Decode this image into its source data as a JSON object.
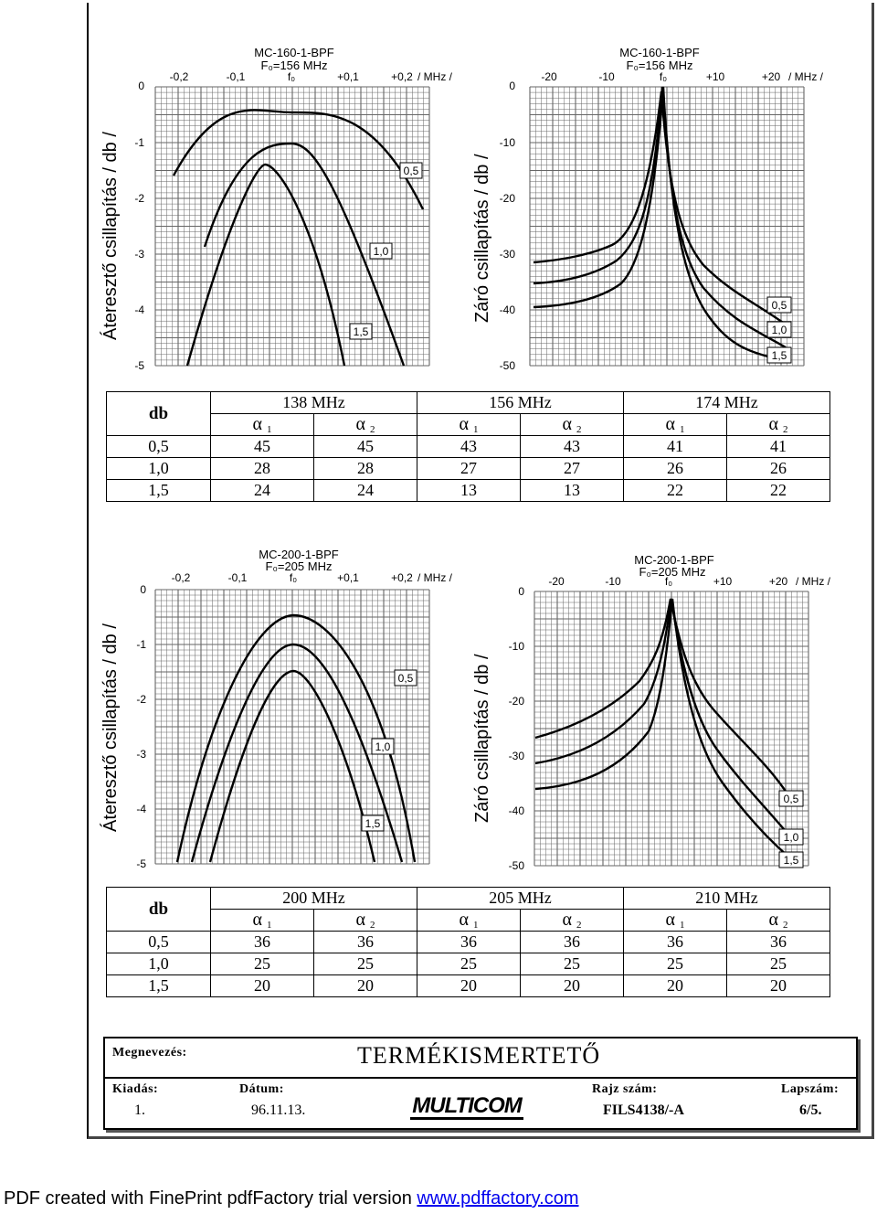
{
  "charts": [
    {
      "id": "top-left",
      "ylabel": "Áteresztő csillapítás  / db /",
      "header_lines": [
        "MC-160-1-BPF",
        "F₀=156 MHz"
      ],
      "x_ticks": [
        "-0,2",
        "-0,1",
        "f₀",
        "+0,1",
        "+0,2"
      ],
      "x_unit": "/ MHz /",
      "y_ticks": [
        "0",
        "-1",
        "-2",
        "-3",
        "-4",
        "-5"
      ],
      "curve_labels": [
        "0,5",
        "1,0",
        "1,5"
      ]
    },
    {
      "id": "top-right",
      "ylabel": "Záró csillapítás  / db /",
      "header_lines": [
        "MC-160-1-BPF",
        "F₀=156 MHz"
      ],
      "x_ticks": [
        "-20",
        "-10",
        "f₀",
        "+10",
        "+20"
      ],
      "x_unit": "/ MHz /",
      "y_ticks": [
        "0",
        "-10",
        "-20",
        "-30",
        "-40",
        "-50"
      ],
      "curve_labels": [
        "0,5",
        "1,0",
        "1,5"
      ]
    },
    {
      "id": "bottom-left",
      "ylabel": "Áteresztő csillapítás  / db /",
      "header_lines": [
        "MC-200-1-BPF",
        "F₀=205 MHz"
      ],
      "x_ticks": [
        "-0,2",
        "-0,1",
        "f₀",
        "+0,1",
        "+0,2"
      ],
      "x_unit": "/ MHz /",
      "y_ticks": [
        "0",
        "-1",
        "-2",
        "-3",
        "-4",
        "-5"
      ],
      "curve_labels": [
        "0,5",
        "1,0",
        "1,5"
      ]
    },
    {
      "id": "bottom-right",
      "ylabel": "Záró csillapítás  / db /",
      "header_lines": [
        "MC-200-1-BPF",
        "F₀=205 MHz"
      ],
      "x_ticks": [
        "-20",
        "-10",
        "f₀",
        "+10",
        "+20"
      ],
      "x_unit": "/ MHz /",
      "y_ticks": [
        "0",
        "-10",
        "-20",
        "-30",
        "-40",
        "-50"
      ],
      "curve_labels": [
        "0,5",
        "1,0",
        "1,5"
      ]
    }
  ],
  "tables": [
    {
      "db_header": "db",
      "freqs": [
        "138 MHz",
        "156 MHz",
        "174  MHz"
      ],
      "alpha_symbol": "α",
      "alpha_subs": [
        "1",
        "2",
        "1",
        "2",
        "1",
        "2"
      ],
      "rows": [
        {
          "db": "0,5",
          "values": [
            "45",
            "45",
            "43",
            "43",
            "41",
            "41"
          ]
        },
        {
          "db": "1,0",
          "values": [
            "28",
            "28",
            "27",
            "27",
            "26",
            "26"
          ]
        },
        {
          "db": "1,5",
          "values": [
            "24",
            "24",
            "13",
            "13",
            "22",
            "22"
          ]
        }
      ]
    },
    {
      "db_header": "db",
      "freqs": [
        "200  MHz",
        "205  MHz",
        "210  MHz"
      ],
      "alpha_symbol": "α",
      "alpha_subs": [
        "1",
        "2",
        "1",
        "2",
        "1",
        "2"
      ],
      "rows": [
        {
          "db": "0,5",
          "values": [
            "36",
            "36",
            "36",
            "36",
            "36",
            "36"
          ]
        },
        {
          "db": "1,0",
          "values": [
            "25",
            "25",
            "25",
            "25",
            "25",
            "25"
          ]
        },
        {
          "db": "1,5",
          "values": [
            "20",
            "20",
            "20",
            "20",
            "20",
            "20"
          ]
        }
      ]
    }
  ],
  "footer": {
    "megnevezes_label": "Megnevezés:",
    "title": "TERMÉKISMERTETŐ",
    "kiadas_label": "Kiadás:",
    "kiadas_value": "1.",
    "datum_label": "Dátum:",
    "datum_value": "96.11.13.",
    "logo_text": "MULTICOM",
    "rajzszam_label": "Rajz szám:",
    "rajzszam_value": "FILS4138/-A",
    "lapszam_label": "Lapszám:",
    "lapszam_value": "6/5."
  },
  "pdf_banner": {
    "text": "PDF created with FinePrint pdfFactory trial version ",
    "link": "www.pdffactory.com",
    "link_color": "#0000ee"
  }
}
